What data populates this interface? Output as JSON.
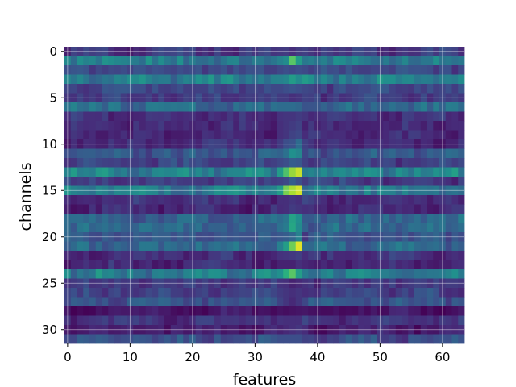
{
  "chart_data": {
    "type": "heatmap",
    "title": "",
    "xlabel": "features",
    "ylabel": "channels",
    "n_columns": 64,
    "n_rows": 32,
    "xlim": [
      -0.5,
      63.5
    ],
    "ylim": [
      31.5,
      -0.5
    ],
    "x_ticks": [
      0,
      10,
      20,
      30,
      40,
      50,
      60
    ],
    "y_ticks": [
      0,
      5,
      10,
      15,
      20,
      25,
      30
    ],
    "grid": true,
    "colormap": "viridis",
    "value_range": [
      0,
      1
    ],
    "row_base_values": [
      0.17,
      0.42,
      0.22,
      0.42,
      0.22,
      0.18,
      0.35,
      0.14,
      0.12,
      0.12,
      0.14,
      0.28,
      0.2,
      0.45,
      0.18,
      0.42,
      0.14,
      0.12,
      0.32,
      0.34,
      0.26,
      0.34,
      0.14,
      0.12,
      0.42,
      0.17,
      0.2,
      0.26,
      0.06,
      0.16,
      0.09,
      0.24
    ],
    "column_modulation": [
      {
        "column": 36,
        "row_values": [
          0.14,
          0.74,
          0.22,
          0.55,
          0.26,
          0.14,
          0.36,
          0.16,
          0.18,
          0.2,
          0.26,
          0.5,
          0.3,
          0.85,
          0.3,
          0.88,
          0.16,
          0.18,
          0.58,
          0.6,
          0.34,
          0.78,
          0.17,
          0.1,
          0.74,
          0.1,
          0.14,
          0.12,
          0.05,
          0.14,
          0.14,
          0.24
        ]
      },
      {
        "column": 37,
        "row_values": [
          0.18,
          0.55,
          0.24,
          0.48,
          0.24,
          0.16,
          0.34,
          0.18,
          0.2,
          0.22,
          0.36,
          0.46,
          0.28,
          0.92,
          0.24,
          0.94,
          0.14,
          0.16,
          0.5,
          0.48,
          0.44,
          0.96,
          0.19,
          0.14,
          0.56,
          0.12,
          0.16,
          0.16,
          0.06,
          0.14,
          0.16,
          0.24
        ]
      },
      {
        "column": 35,
        "row_values": [
          0.18,
          0.48,
          0.24,
          0.46,
          0.24,
          0.18,
          0.36,
          0.16,
          0.16,
          0.16,
          0.24,
          0.38,
          0.24,
          0.72,
          0.22,
          0.8,
          0.14,
          0.14,
          0.4,
          0.42,
          0.3,
          0.56,
          0.16,
          0.1,
          0.64,
          0.14,
          0.16,
          0.16,
          0.04,
          0.14,
          0.12,
          0.24
        ]
      },
      {
        "column": 34,
        "row_values": [
          0.17,
          0.44,
          0.22,
          0.44,
          0.22,
          0.18,
          0.36,
          0.15,
          0.14,
          0.14,
          0.18,
          0.32,
          0.22,
          0.55,
          0.2,
          0.55,
          0.14,
          0.13,
          0.36,
          0.38,
          0.28,
          0.44,
          0.15,
          0.1,
          0.5,
          0.15,
          0.18,
          0.2,
          0.05,
          0.15,
          0.1,
          0.24
        ]
      }
    ]
  }
}
